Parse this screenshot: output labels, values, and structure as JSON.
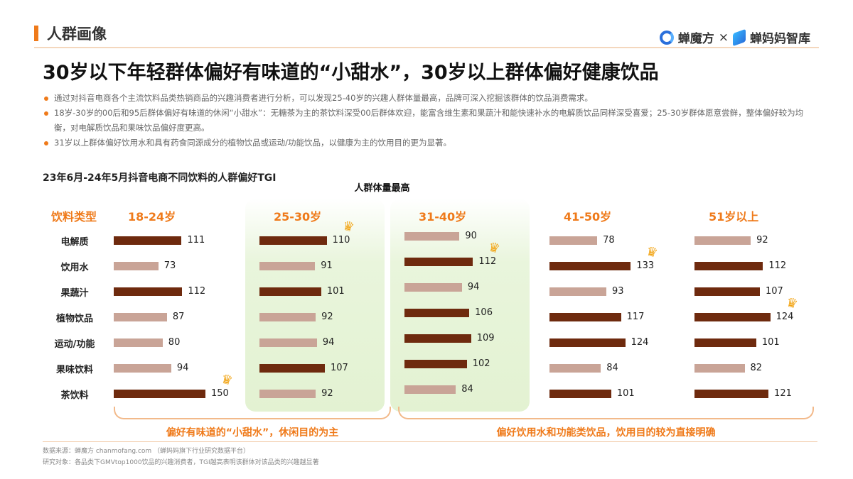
{
  "section_title": "人群画像",
  "logos": {
    "brand1": "蝉魔方",
    "times": "×",
    "brand2": "蝉妈妈智库"
  },
  "headline": "30岁以下年轻群体偏好有味道的“小甜水”，30岁以上群体偏好健康饮品",
  "bullets": [
    "通过对抖音电商各个主流饮料品类热销商品的兴趣消费者进行分析，可以发现25-40岁的兴趣人群体量最高，品牌可深入挖掘该群体的饮品消费需求。",
    "18岁-30岁的00后和95后群体偏好有味道的休闲“小甜水”：无糖茶为主的茶饮料深受00后群体欢迎，能富含维生素和果蔬汁和能快速补水的电解质饮品同样深受喜爱；25-30岁群体愿意尝鲜，整体偏好较为均衡，对电解质饮品和果味饮品偏好度更高。",
    "31岁以上群体偏好饮用水和具有药食同源成分的植物饮品或运动/功能饮品，以健康为主的饮用目的更为显著。"
  ],
  "chart_data": {
    "type": "bar",
    "title": "23年6月-24年5月抖音电商不同饮料的人群偏好TGI",
    "category_header": "饮料类型",
    "categories": [
      "电解质",
      "饮用水",
      "果蔬汁",
      "植物饮品",
      "运动/功能",
      "果味饮料",
      "茶饮料"
    ],
    "series": [
      {
        "name": "18-24岁",
        "values": [
          111,
          73,
          112,
          87,
          80,
          94,
          150
        ]
      },
      {
        "name": "25-30岁",
        "values": [
          110,
          91,
          101,
          92,
          94,
          107,
          92
        ]
      },
      {
        "name": "31-40岁",
        "values": [
          90,
          112,
          94,
          106,
          109,
          102,
          84
        ]
      },
      {
        "name": "41-50岁",
        "values": [
          78,
          133,
          93,
          117,
          124,
          84,
          101
        ]
      },
      {
        "name": "51岁以上",
        "values": [
          92,
          112,
          107,
          124,
          101,
          82,
          121
        ]
      }
    ],
    "highlight_label": "人群体量最高",
    "highlighted_series": [
      "25-30岁",
      "31-40岁"
    ],
    "colors": {
      "high": "#6e2a0e",
      "low": "#c9a497",
      "highlight_bg": "#e3f2d2",
      "accent": "#ef7a1a"
    },
    "max_marker_icon": "crown-icon"
  },
  "conclusions": [
    "偏好有味道的“小甜水”，休闲目的为主",
    "偏好饮用水和功能类饮品，饮用目的较为直接明确"
  ],
  "footer": {
    "source": "数据来源：蝉魔方 chanmofang.com （蝉妈妈旗下行业研究数据平台）",
    "subject": "研究对象：各品类下GMVtop1000饮品的兴趣消费者，TGI越高表明该群体对该品类的兴趣越显著"
  }
}
